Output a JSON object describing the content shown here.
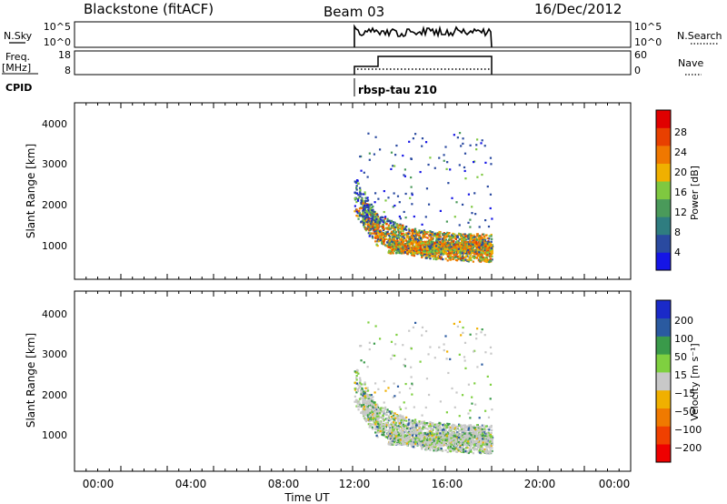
{
  "header": {
    "station": "Blackstone (fitACF)",
    "beam": "Beam 03",
    "date": "16/Dec/2012"
  },
  "strip1": {
    "left_label": "N.Sky",
    "right_label": "N.Search",
    "left_ticks": [
      "10^5",
      "10^0"
    ],
    "right_ticks": [
      "10^5",
      "10^0"
    ]
  },
  "strip2": {
    "left_label_1": "Freq.",
    "left_label_2": "[MHz]",
    "right_label": "Nave",
    "left_ticks": [
      "18",
      "8"
    ],
    "right_ticks": [
      "60",
      "0"
    ]
  },
  "cpid": {
    "label": "CPID",
    "program": "rbsp-tau 210"
  },
  "colors": {
    "power": [
      "#1515e6",
      "#2a4aa0",
      "#2f7d80",
      "#4a9a5a",
      "#7fc840",
      "#f0b000",
      "#f07800",
      "#e84000",
      "#e00000"
    ],
    "velocity": [
      "#ee0000",
      "#f04000",
      "#f07a00",
      "#f0b000",
      "#c8c8c8",
      "#7fd040",
      "#3a9a4a",
      "#2a5aa0",
      "#1a2ac8"
    ]
  },
  "chart_data": [
    {
      "type": "heatmap",
      "name": "power-panel",
      "ylabel": "Slant Range [km]",
      "xlim": [
        0,
        24
      ],
      "ylim": [
        180,
        4600
      ],
      "yticks": [
        "1000",
        "2000",
        "3000",
        "4000"
      ],
      "colorbar": {
        "label": "Power [dB]",
        "ticks": [
          "4",
          "8",
          "12",
          "16",
          "20",
          "24",
          "28"
        ],
        "range": [
          0,
          32
        ]
      }
    },
    {
      "type": "heatmap",
      "name": "velocity-panel",
      "ylabel": "Slant Range [km]",
      "xlabel": "Time UT",
      "xlim": [
        0,
        24
      ],
      "ylim": [
        180,
        4600
      ],
      "yticks": [
        "1000",
        "2000",
        "3000",
        "4000"
      ],
      "xticks": [
        "00:00",
        "04:00",
        "08:00",
        "12:00",
        "16:00",
        "20:00",
        "00:00"
      ],
      "colorbar": {
        "label": "Velocity [m s⁻¹]",
        "ticks": [
          "200",
          "100",
          "50",
          "15",
          "−15",
          "−50",
          "−100",
          "−200"
        ]
      }
    }
  ]
}
